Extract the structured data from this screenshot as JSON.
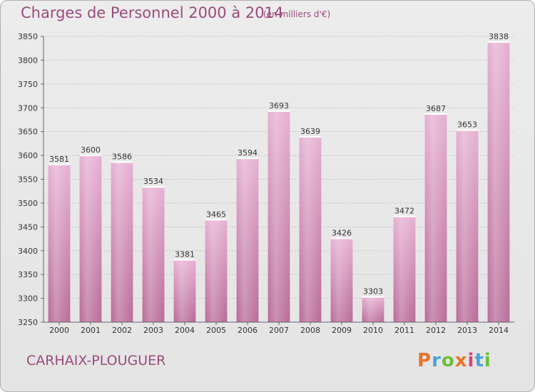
{
  "header": {
    "title": "Charges de Personnel 2000 à 2014",
    "subtitle": "(en milliers d'€)"
  },
  "footer": {
    "commune": "CARHAIX-PLOUGUER",
    "logo_text": "Proxiti"
  },
  "colors": {
    "title": "#9a4c7a",
    "bar_light": "#e8b4d4",
    "bar_dark": "#b56a96",
    "logo": [
      "#e8732a",
      "#4aa3d9",
      "#6cbf3a",
      "#e8732a",
      "#d9417a",
      "#4aa3d9",
      "#6cbf3a"
    ]
  },
  "chart_data": {
    "type": "bar",
    "title": "Charges de Personnel 2000 à 2014",
    "subtitle": "(en milliers d'€)",
    "xlabel": "",
    "ylabel": "",
    "categories": [
      "2000",
      "2001",
      "2002",
      "2003",
      "2004",
      "2005",
      "2006",
      "2007",
      "2008",
      "2009",
      "2010",
      "2011",
      "2012",
      "2013",
      "2014"
    ],
    "values": [
      3581,
      3600,
      3586,
      3534,
      3381,
      3465,
      3594,
      3693,
      3639,
      3426,
      3303,
      3472,
      3687,
      3653,
      3838
    ],
    "ylim": [
      3250,
      3850
    ],
    "yticks": [
      3250,
      3300,
      3350,
      3400,
      3450,
      3500,
      3550,
      3600,
      3650,
      3700,
      3750,
      3800,
      3850
    ],
    "grid": true,
    "legend": "none"
  }
}
